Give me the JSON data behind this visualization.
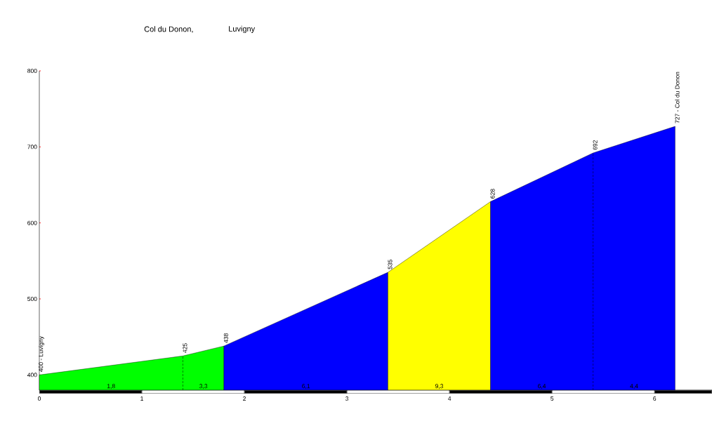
{
  "chart_data": {
    "type": "area",
    "title": "Col du Donon,",
    "subtitle": "Luvigny",
    "series": [
      {
        "x": [
          0,
          1.4,
          1.8
        ],
        "values": [
          400,
          425,
          438
        ],
        "color": "#00ff00"
      },
      {
        "x": [
          1.8,
          3.4
        ],
        "values": [
          438,
          535
        ],
        "color": "#0000ff"
      },
      {
        "x": [
          3.4,
          4.4
        ],
        "values": [
          535,
          628
        ],
        "color": "#ffff00"
      },
      {
        "x": [
          4.4,
          5.4,
          6.2
        ],
        "values": [
          628,
          692,
          727
        ],
        "color": "#0000ff"
      }
    ],
    "annotations": [
      {
        "text": "400 - Luvigny",
        "x": 0,
        "y": 400
      },
      {
        "text": "425",
        "x": 1.4,
        "y": 425
      },
      {
        "text": "438",
        "x": 1.8,
        "y": 438
      },
      {
        "text": "535",
        "x": 3.4,
        "y": 535
      },
      {
        "text": "628",
        "x": 4.4,
        "y": 628
      },
      {
        "text": "692",
        "x": 5.4,
        "y": 692
      },
      {
        "text": "727 - Col du Donon",
        "x": 6.2,
        "y": 727
      },
      "1,8",
      "3,3",
      "6,1",
      "9,3",
      "6,4",
      "4,4"
    ],
    "xlim": [
      0,
      6.56
    ],
    "ylim": [
      380,
      800
    ],
    "xticks": [
      0,
      1,
      2,
      3,
      4,
      5,
      6
    ],
    "yticks": [
      400,
      500,
      600,
      700,
      800
    ],
    "grid": false
  }
}
